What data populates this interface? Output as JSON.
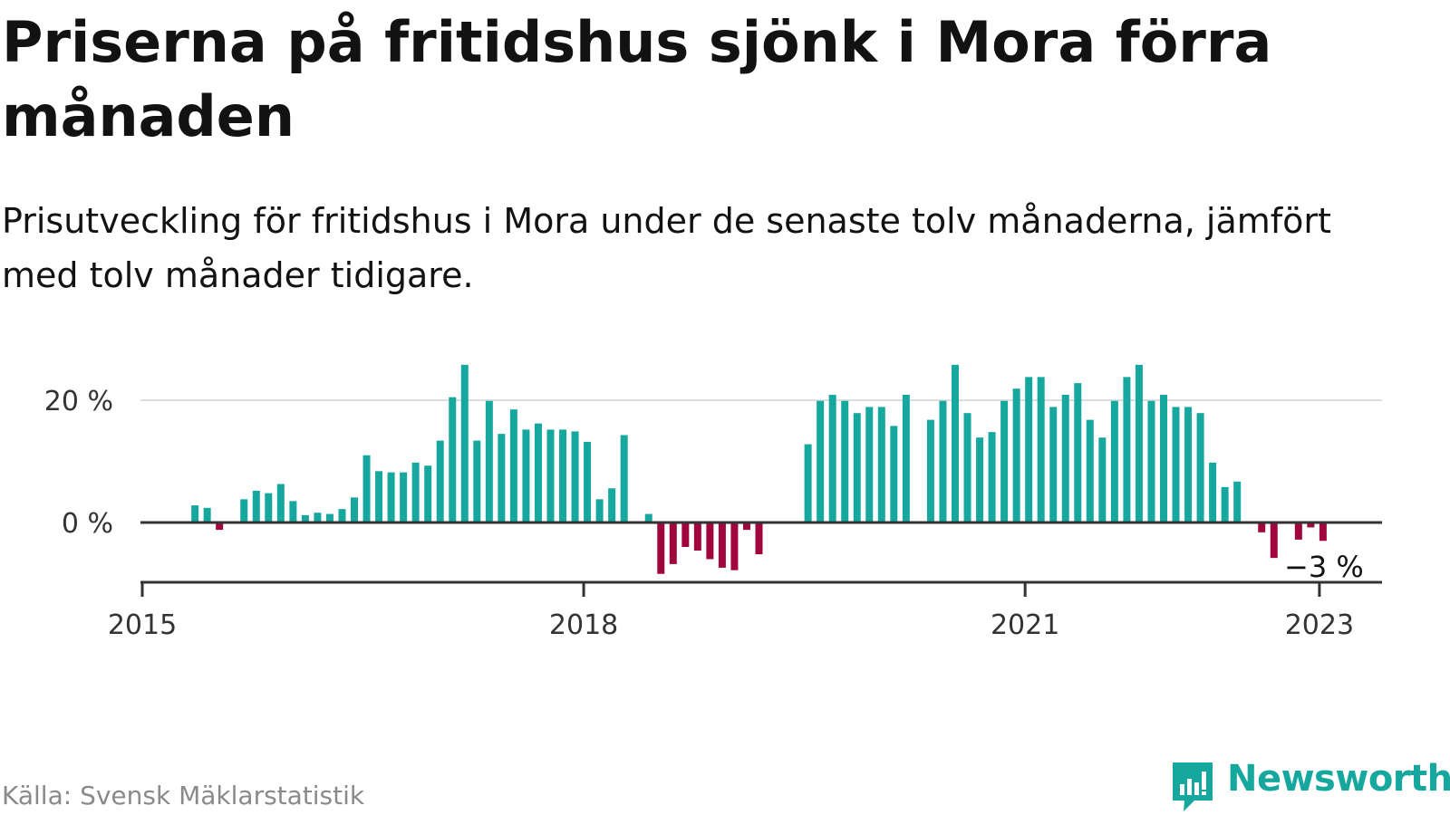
{
  "title": "Priserna på fritidshus sjönk i Mora förra månaden",
  "subtitle": "Prisutveckling för fritidshus i Mora under de senaste tolv månaderna, jämfört med tolv månader tidigare.",
  "source": "Källa: Svensk Mäklarstatistik",
  "brand": {
    "name": "Newsworthy",
    "icon": "bar-chart-speech-bubble-icon"
  },
  "colors": {
    "positive": "#16a89f",
    "negative": "#a0063d",
    "text": "#121212",
    "grid": "#dddddd",
    "axis": "#333333"
  },
  "chart_data": {
    "type": "bar",
    "title": "",
    "xlabel": "",
    "ylabel": "",
    "x_axis": "monthly",
    "ylim": [
      -10,
      26
    ],
    "y_ticks": [
      0,
      20
    ],
    "y_tick_labels": [
      "0 %",
      "20 %"
    ],
    "x_ticks": [
      "2015",
      "2018",
      "2021",
      "2023"
    ],
    "grid": true,
    "legend": "none",
    "series": [
      {
        "values": [
          {
            "month": "2015-05",
            "value": 2.8
          },
          {
            "month": "2015-06",
            "value": 2.4
          },
          {
            "month": "2015-07",
            "value": -1.2
          },
          {
            "month": "2015-09",
            "value": 3.8
          },
          {
            "month": "2015-10",
            "value": 5.2
          },
          {
            "month": "2015-11",
            "value": 4.8
          },
          {
            "month": "2015-12",
            "value": 6.3
          },
          {
            "month": "2016-01",
            "value": 3.5
          },
          {
            "month": "2016-02",
            "value": 1.2
          },
          {
            "month": "2016-03",
            "value": 1.6
          },
          {
            "month": "2016-04",
            "value": 1.4
          },
          {
            "month": "2016-05",
            "value": 2.2
          },
          {
            "month": "2016-06",
            "value": 4.1
          },
          {
            "month": "2016-07",
            "value": 11.0
          },
          {
            "month": "2016-08",
            "value": 8.4
          },
          {
            "month": "2016-09",
            "value": 8.2
          },
          {
            "month": "2016-10",
            "value": 8.2
          },
          {
            "month": "2016-11",
            "value": 9.8
          },
          {
            "month": "2016-12",
            "value": 9.3
          },
          {
            "month": "2017-01",
            "value": 13.4
          },
          {
            "month": "2017-02",
            "value": 20.5
          },
          {
            "month": "2017-03",
            "value": 25.8
          },
          {
            "month": "2017-04",
            "value": 13.4
          },
          {
            "month": "2017-05",
            "value": 19.9
          },
          {
            "month": "2017-06",
            "value": 14.5
          },
          {
            "month": "2017-07",
            "value": 18.5
          },
          {
            "month": "2017-08",
            "value": 15.2
          },
          {
            "month": "2017-09",
            "value": 16.2
          },
          {
            "month": "2017-10",
            "value": 15.2
          },
          {
            "month": "2017-11",
            "value": 15.2
          },
          {
            "month": "2017-12",
            "value": 14.9
          },
          {
            "month": "2018-01",
            "value": 13.2
          },
          {
            "month": "2018-02",
            "value": 3.8
          },
          {
            "month": "2018-03",
            "value": 5.6
          },
          {
            "month": "2018-04",
            "value": 14.3
          },
          {
            "month": "2018-06",
            "value": 1.4
          },
          {
            "month": "2018-07",
            "value": -8.4
          },
          {
            "month": "2018-08",
            "value": -6.8
          },
          {
            "month": "2018-09",
            "value": -4.0
          },
          {
            "month": "2018-10",
            "value": -4.6
          },
          {
            "month": "2018-11",
            "value": -6.0
          },
          {
            "month": "2018-12",
            "value": -7.4
          },
          {
            "month": "2019-01",
            "value": -7.8
          },
          {
            "month": "2019-02",
            "value": -1.2
          },
          {
            "month": "2019-03",
            "value": -5.2
          },
          {
            "month": "2019-07",
            "value": 12.8
          },
          {
            "month": "2019-08",
            "value": 19.9
          },
          {
            "month": "2019-09",
            "value": 20.9
          },
          {
            "month": "2019-10",
            "value": 19.9
          },
          {
            "month": "2019-11",
            "value": 17.9
          },
          {
            "month": "2019-12",
            "value": 18.9
          },
          {
            "month": "2020-01",
            "value": 18.9
          },
          {
            "month": "2020-02",
            "value": 15.8
          },
          {
            "month": "2020-03",
            "value": 20.9
          },
          {
            "month": "2020-05",
            "value": 16.8
          },
          {
            "month": "2020-06",
            "value": 19.9
          },
          {
            "month": "2020-07",
            "value": 25.8
          },
          {
            "month": "2020-08",
            "value": 17.9
          },
          {
            "month": "2020-09",
            "value": 13.9
          },
          {
            "month": "2020-10",
            "value": 14.8
          },
          {
            "month": "2020-11",
            "value": 19.9
          },
          {
            "month": "2020-12",
            "value": 21.9
          },
          {
            "month": "2021-01",
            "value": 23.8
          },
          {
            "month": "2021-02",
            "value": 23.8
          },
          {
            "month": "2021-03",
            "value": 18.9
          },
          {
            "month": "2021-04",
            "value": 20.9
          },
          {
            "month": "2021-05",
            "value": 22.8
          },
          {
            "month": "2021-06",
            "value": 16.8
          },
          {
            "month": "2021-07",
            "value": 13.9
          },
          {
            "month": "2021-08",
            "value": 19.9
          },
          {
            "month": "2021-09",
            "value": 23.8
          },
          {
            "month": "2021-10",
            "value": 25.8
          },
          {
            "month": "2021-11",
            "value": 19.9
          },
          {
            "month": "2021-12",
            "value": 20.9
          },
          {
            "month": "2022-01",
            "value": 18.9
          },
          {
            "month": "2022-02",
            "value": 18.9
          },
          {
            "month": "2022-03",
            "value": 17.9
          },
          {
            "month": "2022-04",
            "value": 9.8
          },
          {
            "month": "2022-05",
            "value": 5.8
          },
          {
            "month": "2022-06",
            "value": 6.7
          },
          {
            "month": "2022-08",
            "value": -1.6
          },
          {
            "month": "2022-09",
            "value": -5.8
          },
          {
            "month": "2022-11",
            "value": -2.8
          },
          {
            "month": "2022-12",
            "value": -0.8
          },
          {
            "month": "2023-01",
            "value": -3.0
          }
        ]
      }
    ],
    "annotations": [
      {
        "month": "2023-01",
        "label": "−3 %"
      }
    ]
  }
}
